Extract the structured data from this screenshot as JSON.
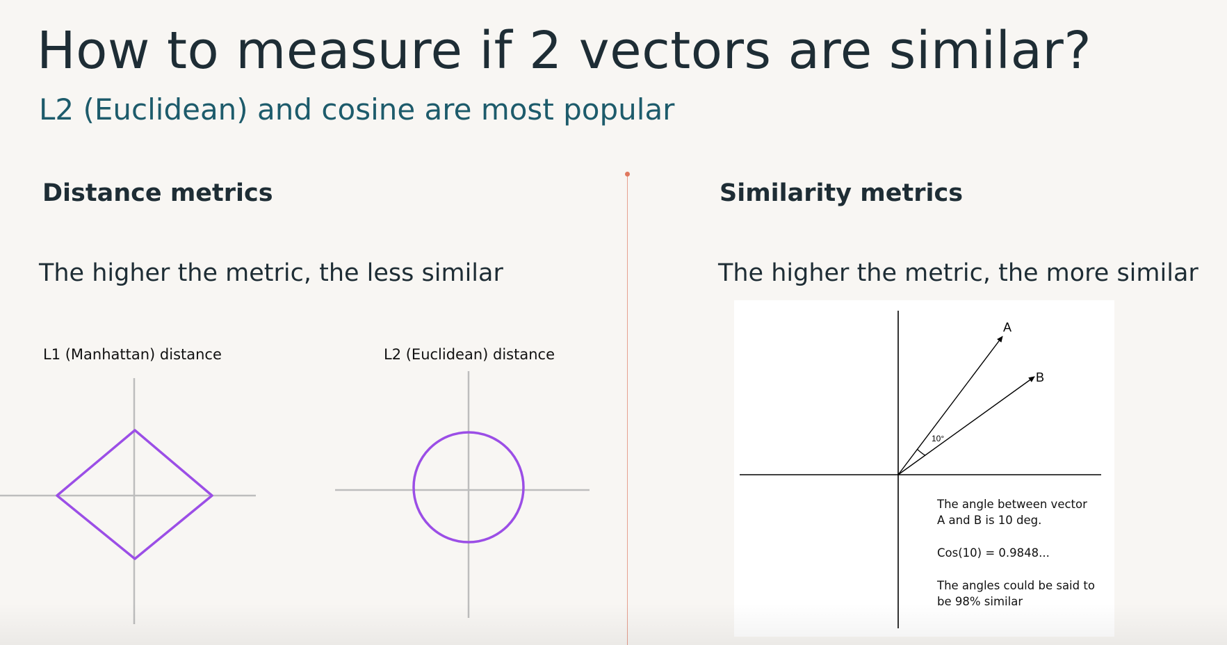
{
  "slide": {
    "title": "How to measure if 2 vectors are similar?",
    "subtitle": "L2 (Euclidean) and cosine are most popular"
  },
  "colors": {
    "title": "#1e2d35",
    "subtitle": "#1d5b6b",
    "shape_stroke": "#9b4ee6",
    "axis": "#bdbdbd",
    "divider": "#e6a08f"
  },
  "distance": {
    "heading": "Distance metrics",
    "text": "The higher the metric, the less similar",
    "l1_label": "L1 (Manhattan) distance",
    "l2_label": "L2 (Euclidean) distance"
  },
  "similarity": {
    "heading": "Similarity metrics",
    "text": "The higher the metric, the more similar",
    "diagram": {
      "vector_a_label": "A",
      "vector_b_label": "B",
      "angle_label": "10°",
      "note_1_line_1": "The angle between vector",
      "note_1_line_2": "A and B is 10 deg.",
      "note_2": "Cos(10)  = 0.9848...",
      "note_3_line_1": "The angles could be said to",
      "note_3_line_2": "be 98% similar"
    }
  }
}
